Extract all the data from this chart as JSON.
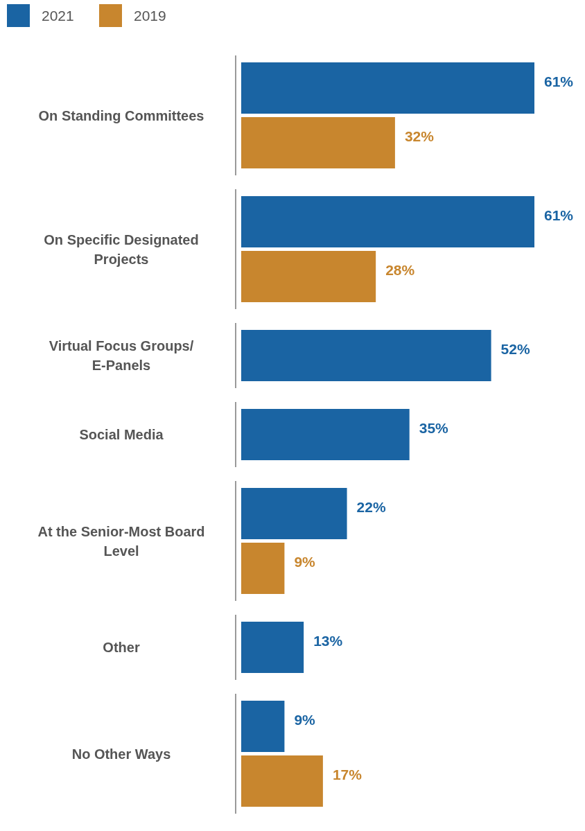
{
  "chart_data": {
    "type": "bar",
    "orientation": "horizontal",
    "categories": [
      "On Standing Committees",
      "On Specific Designated Projects",
      "Virtual Focus Groups/ E-Panels",
      "Social Media",
      "At the Senior-Most Board Level",
      "Other",
      "No Other Ways"
    ],
    "series": [
      {
        "name": "2021",
        "color": "#1a64a3",
        "values": [
          61,
          61,
          52,
          35,
          22,
          13,
          9
        ],
        "value_labels": [
          "61%",
          "61%",
          "52%",
          "35%",
          "22%",
          "13%",
          "9%"
        ]
      },
      {
        "name": "2019",
        "color": "#c8862e",
        "values": [
          32,
          28,
          null,
          null,
          9,
          null,
          17
        ],
        "value_labels": [
          "32%",
          "28%",
          null,
          null,
          "9%",
          null,
          "17%"
        ]
      }
    ],
    "legend": "top left"
  }
}
